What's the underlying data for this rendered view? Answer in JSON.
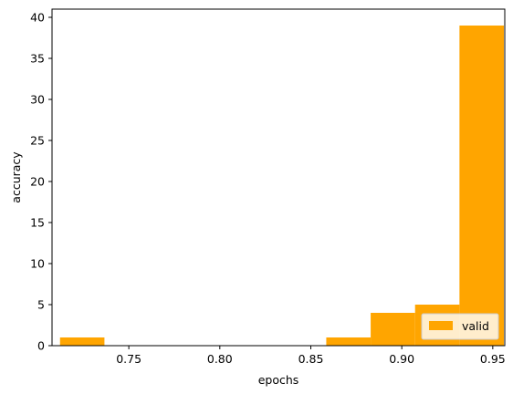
{
  "chart_data": {
    "type": "bar",
    "title": "",
    "xlabel": "epochs",
    "ylabel": "accuracy",
    "xlim": [
      0.7078,
      0.9566
    ],
    "ylim": [
      0,
      41
    ],
    "grid": false,
    "legend": {
      "entries": [
        "valid"
      ],
      "placement": "lower right"
    },
    "color": "#FFA500",
    "series": [
      {
        "name": "valid",
        "bins": [
          {
            "x0": 0.7122,
            "x1": 0.7366,
            "count": 1
          },
          {
            "x0": 0.7366,
            "x1": 0.761,
            "count": 0
          },
          {
            "x0": 0.761,
            "x1": 0.7854,
            "count": 0
          },
          {
            "x0": 0.7854,
            "x1": 0.8098,
            "count": 0
          },
          {
            "x0": 0.8098,
            "x1": 0.8342,
            "count": 0
          },
          {
            "x0": 0.8342,
            "x1": 0.8585,
            "count": 0
          },
          {
            "x0": 0.8585,
            "x1": 0.8829,
            "count": 1
          },
          {
            "x0": 0.8829,
            "x1": 0.9073,
            "count": 4
          },
          {
            "x0": 0.9073,
            "x1": 0.9317,
            "count": 5
          },
          {
            "x0": 0.9317,
            "x1": 0.9561,
            "count": 39
          }
        ]
      }
    ],
    "xticks": [
      {
        "value": 0.75,
        "label": "0.75"
      },
      {
        "value": 0.8,
        "label": "0.80"
      },
      {
        "value": 0.85,
        "label": "0.85"
      },
      {
        "value": 0.9,
        "label": "0.90"
      },
      {
        "value": 0.95,
        "label": "0.95"
      }
    ],
    "yticks": [
      {
        "value": 0,
        "label": "0"
      },
      {
        "value": 5,
        "label": "5"
      },
      {
        "value": 10,
        "label": "10"
      },
      {
        "value": 15,
        "label": "15"
      },
      {
        "value": 20,
        "label": "20"
      },
      {
        "value": 25,
        "label": "25"
      },
      {
        "value": 30,
        "label": "30"
      },
      {
        "value": 35,
        "label": "35"
      },
      {
        "value": 40,
        "label": "40"
      }
    ]
  }
}
